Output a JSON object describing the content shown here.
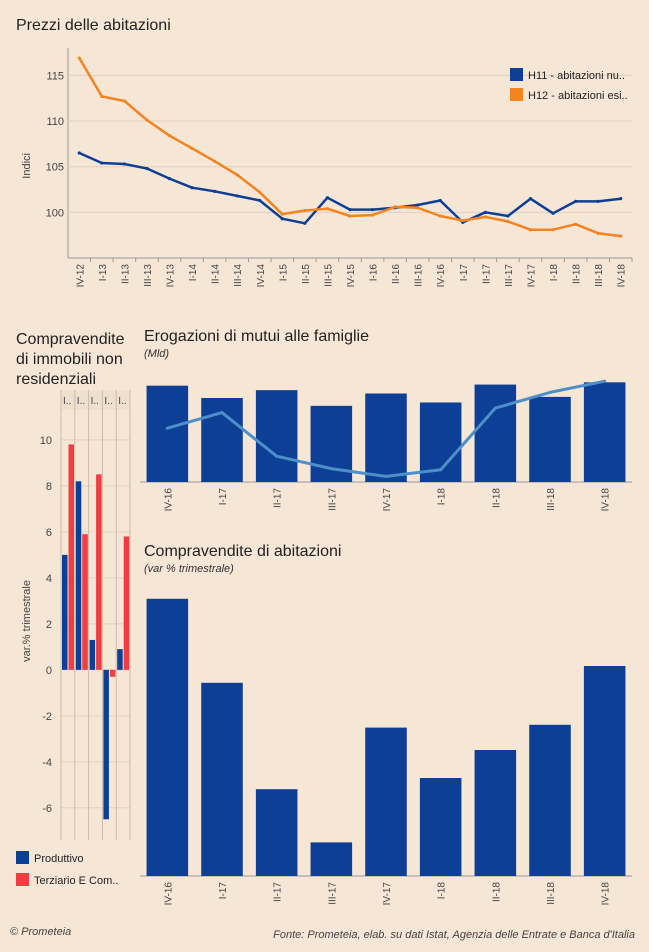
{
  "chart_data": [
    {
      "id": "prezzi",
      "type": "line",
      "title": "Prezzi delle abitazioni",
      "ylabel": "Indici",
      "ylim": [
        95,
        118
      ],
      "yticks": [
        100,
        105,
        110,
        115
      ],
      "categories": [
        "IV-12",
        "I-13",
        "II-13",
        "III-13",
        "IV-13",
        "I-14",
        "II-14",
        "III-14",
        "IV-14",
        "I-15",
        "II-15",
        "III-15",
        "IV-15",
        "I-16",
        "II-16",
        "III-16",
        "IV-16",
        "I-17",
        "II-17",
        "III-17",
        "IV-17",
        "I-18",
        "II-18",
        "III-18",
        "IV-18"
      ],
      "series": [
        {
          "name": "H11 - abitazioni nu..",
          "color": "#0d3f96",
          "values": [
            106.5,
            105.4,
            105.3,
            104.8,
            103.7,
            102.7,
            102.3,
            101.8,
            101.3,
            99.3,
            98.8,
            101.6,
            100.3,
            100.3,
            100.5,
            100.8,
            101.3,
            98.9,
            100.0,
            99.6,
            101.5,
            99.9,
            101.2,
            101.2,
            101.5
          ]
        },
        {
          "name": "H12 - abitazioni esi..",
          "color": "#f3841f",
          "values": [
            116.9,
            112.7,
            112.2,
            110.1,
            108.4,
            107.0,
            105.6,
            104.1,
            102.2,
            99.8,
            100.2,
            100.4,
            99.6,
            99.7,
            100.6,
            100.5,
            99.6,
            99.1,
            99.5,
            99.0,
            98.1,
            98.1,
            98.7,
            97.7,
            97.4
          ]
        }
      ],
      "grid": true,
      "legend": "top-right"
    },
    {
      "id": "nonres",
      "type": "bar",
      "title": "Compravendite di immobili non residenziali",
      "ylabel": "var.% trimestrale",
      "ylim": [
        -7.4,
        11.3
      ],
      "yticks": [
        -6,
        -4,
        -2,
        0,
        2,
        4,
        6,
        8,
        10
      ],
      "categories": [
        "I..",
        "I..",
        "I..",
        "I..",
        "I.."
      ],
      "series": [
        {
          "name": "Produttivo",
          "color": "#0d3f96",
          "values": [
            5.0,
            8.2,
            1.3,
            -6.5,
            0.9
          ]
        },
        {
          "name": "Terziario E Com..",
          "color": "#ee3e42",
          "values": [
            9.8,
            5.9,
            8.5,
            -0.3,
            5.8
          ]
        }
      ],
      "legend": "bottom"
    },
    {
      "id": "mutui",
      "type": "bar",
      "title": "Erogazioni di mutui alle famiglie",
      "subtitle": "(Mld)",
      "categories": [
        "IV-16",
        "I-17",
        "II-17",
        "III-17",
        "IV-17",
        "I-18",
        "II-18",
        "III-18",
        "IV-18"
      ],
      "ylim": [
        0,
        100
      ],
      "bar_color": "#0d3f96",
      "line_color": "#4d8fc9",
      "bar_values": [
        86,
        75,
        82,
        68,
        79,
        71,
        87,
        76,
        89
      ],
      "line_values": [
        48,
        62,
        23,
        12,
        5,
        11,
        66,
        80,
        90
      ]
    },
    {
      "id": "compravendite",
      "type": "bar",
      "title": "Compravendite di abitazioni",
      "subtitle": "(var % trimestrale)",
      "categories": [
        "IV-16",
        "I-17",
        "II-17",
        "III-17",
        "IV-17",
        "I-18",
        "II-18",
        "III-18",
        "IV-18"
      ],
      "ylim": [
        0,
        100
      ],
      "bar_color": "#0d3f96",
      "values": [
        99,
        69,
        31,
        12,
        53,
        35,
        45,
        54,
        75
      ]
    }
  ],
  "footer": {
    "left": "© Prometeia",
    "right": "Fonte: Prometeia, elab. su dati Istat, Agenzia delle Entrate e Banca d'Italia"
  }
}
